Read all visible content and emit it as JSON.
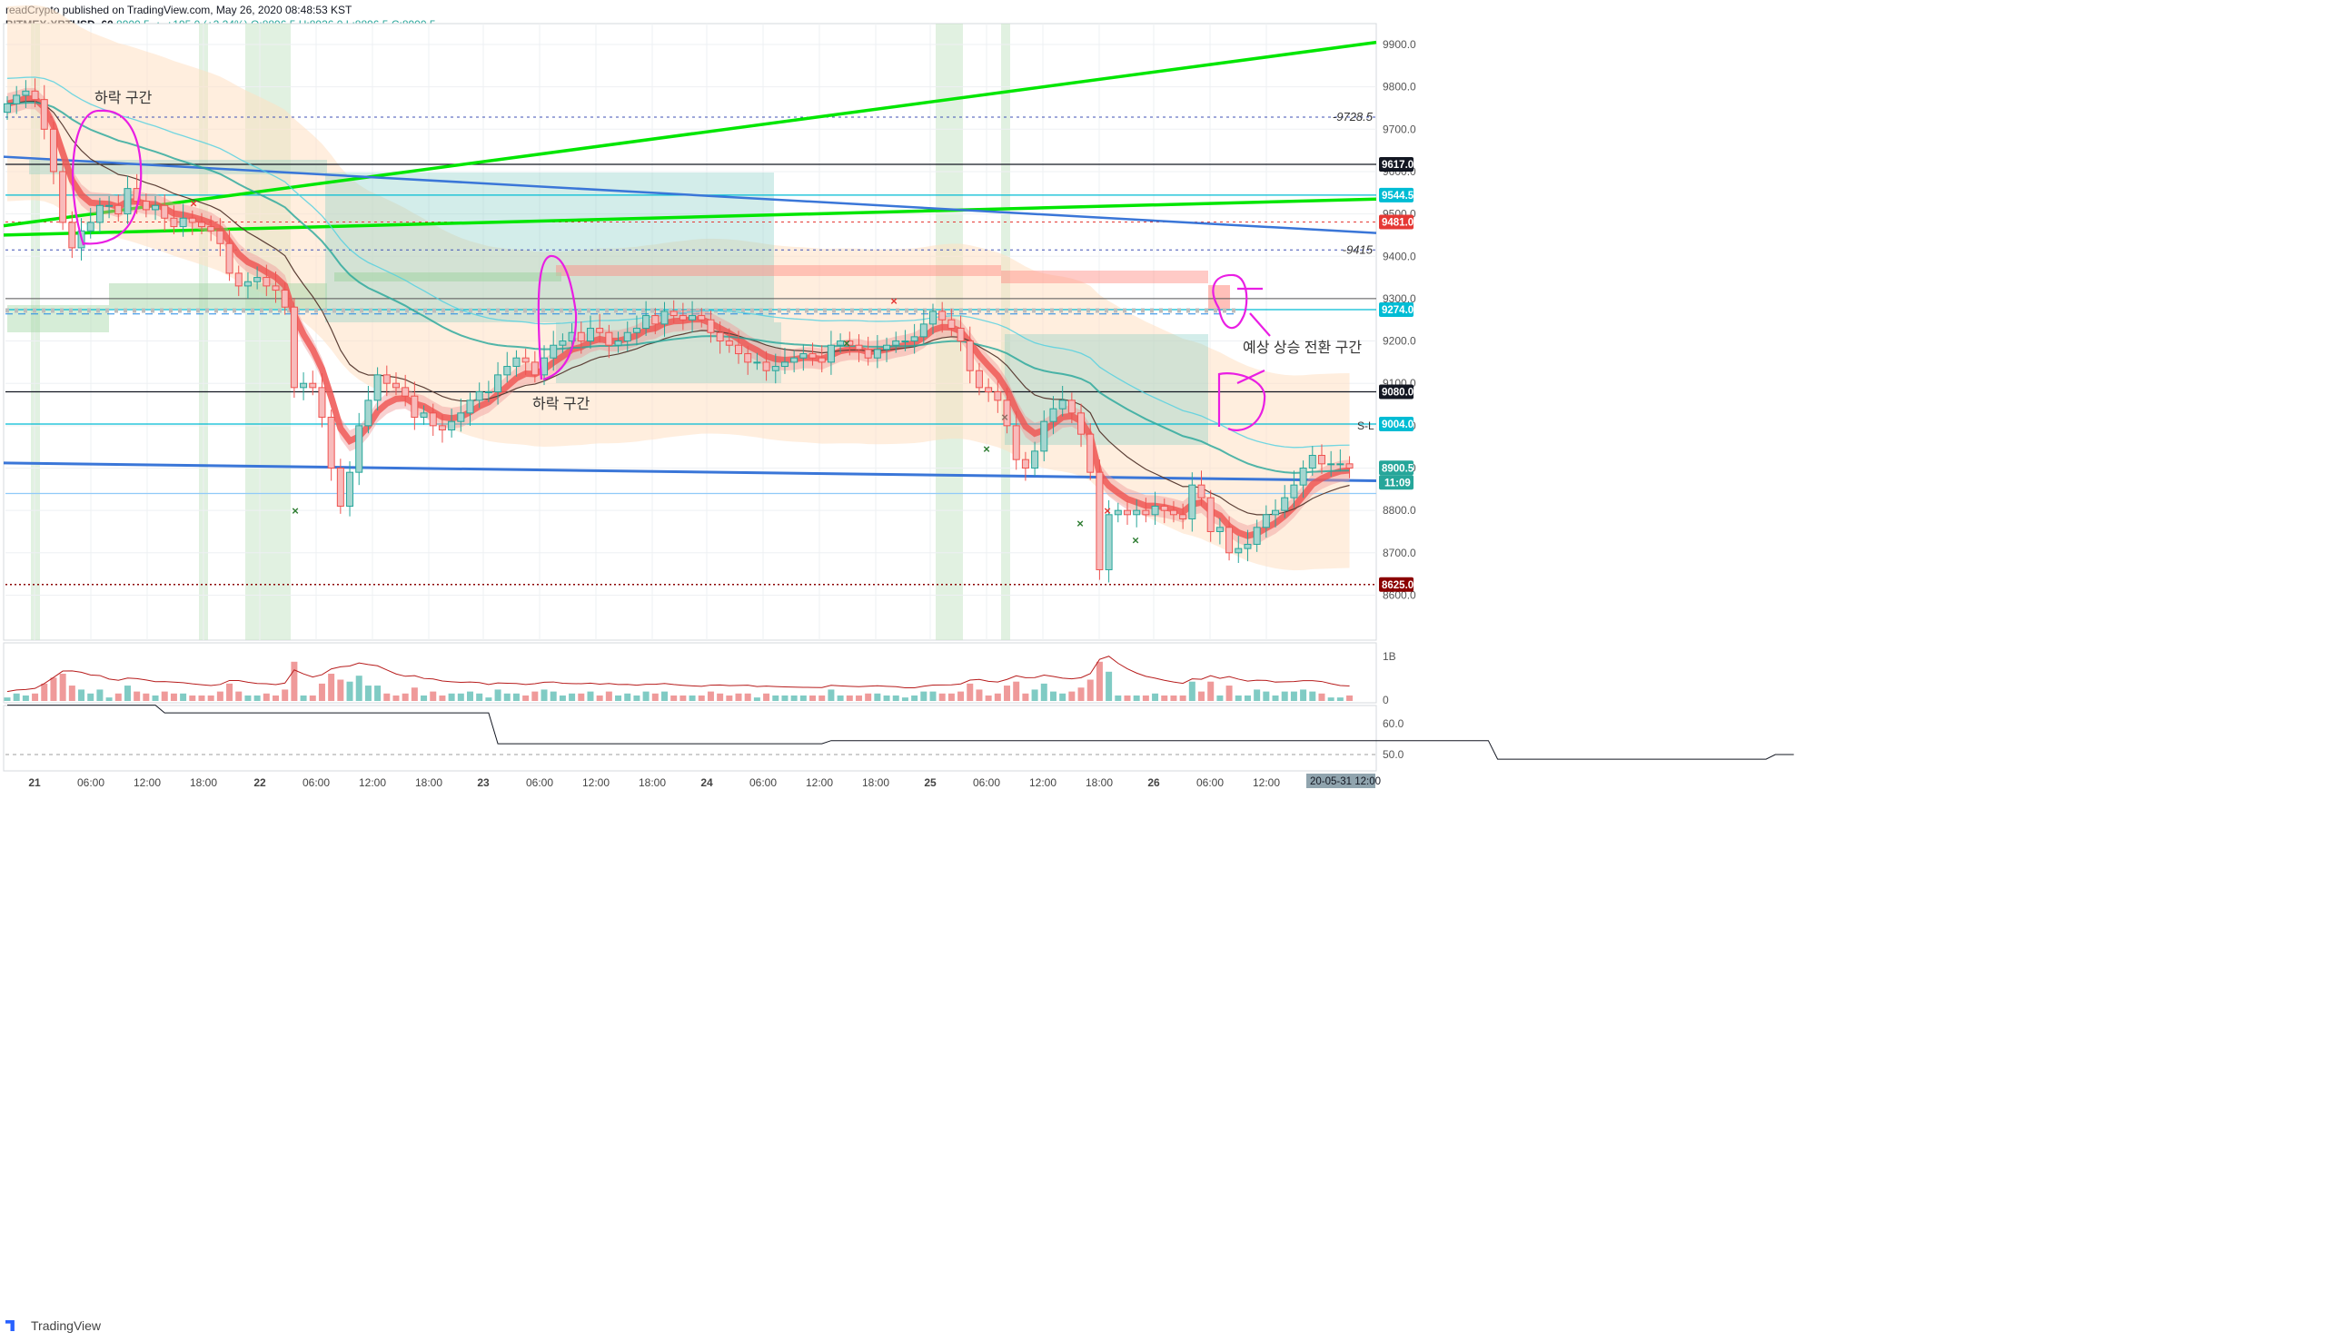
{
  "header": {
    "publisher_line": "readCrypto published on TradingView.com, May 26, 2020 08:48:53 KST",
    "symbol_label": "BITMEX:XBTUSD, 60",
    "last": "8900.5",
    "change": "▲ +195.0 (+2.24%)",
    "ohlc": "O:8896.5 H:8936.0 L:8896.5 C:8900.5"
  },
  "footer": {
    "brand": "TradingView"
  },
  "chart_data": {
    "type": "candlestick",
    "symbol": "BITMEX:XBTUSD",
    "interval": "60",
    "ylim": [
      8520,
      9950
    ],
    "y_ticks": [
      8600,
      8700,
      8800,
      8900,
      9000,
      9100,
      9200,
      9300,
      9400,
      9500,
      9600,
      9700,
      9800,
      9900
    ],
    "x_tick_labels": [
      "21",
      "06:00",
      "12:00",
      "18:00",
      "22",
      "06:00",
      "12:00",
      "18:00",
      "23",
      "06:00",
      "12:00",
      "18:00",
      "24",
      "06:00",
      "12:00",
      "18:00",
      "25",
      "06:00",
      "12:00",
      "18:00",
      "26",
      "06:00",
      "12:00"
    ],
    "date_badge": "20-05-31  12:00",
    "countdown": "11:09",
    "price_levels": [
      {
        "value": 9617.0,
        "label": "9617.0",
        "color": "#131722"
      },
      {
        "value": 9544.5,
        "label": "9544.5",
        "color": "#00bcd4"
      },
      {
        "value": 9481.0,
        "label": "9481.0",
        "color": "#e53935"
      },
      {
        "value": 9274.0,
        "label": "9274.0",
        "color": "#00bcd4"
      },
      {
        "value": 9080.0,
        "label": "9080.0",
        "color": "#131722"
      },
      {
        "value": 9004.0,
        "label": "9004.0",
        "color": "#00bcd4"
      },
      {
        "value": 8900.5,
        "label": "8900.5",
        "color": "#26a69a"
      },
      {
        "value": 8625.0,
        "label": "8625.0",
        "color": "#8b0000"
      }
    ],
    "dashed_levels": [
      {
        "value": 9728.5,
        "label": "9728.5"
      },
      {
        "value": 9415,
        "label": "9415"
      }
    ],
    "annotations": [
      "하락 구간",
      "하락 구간",
      "예상 상승 전환 구간",
      "S-L"
    ],
    "closes": [
      9760,
      9780,
      9790,
      9770,
      9700,
      9600,
      9480,
      9420,
      9460,
      9480,
      9520,
      9520,
      9500,
      9560,
      9530,
      9510,
      9520,
      9490,
      9470,
      9490,
      9480,
      9470,
      9460,
      9430,
      9360,
      9330,
      9340,
      9350,
      9330,
      9320,
      9280,
      9090,
      9100,
      9090,
      9020,
      8900,
      8810,
      8890,
      9000,
      9060,
      9120,
      9100,
      9090,
      9070,
      9020,
      9030,
      9000,
      8990,
      9010,
      9030,
      9060,
      9080,
      9080,
      9120,
      9140,
      9160,
      9150,
      9120,
      9160,
      9190,
      9200,
      9220,
      9200,
      9230,
      9220,
      9190,
      9200,
      9220,
      9230,
      9260,
      9240,
      9270,
      9260,
      9250,
      9260,
      9250,
      9220,
      9200,
      9190,
      9170,
      9150,
      9150,
      9130,
      9140,
      9150,
      9160,
      9170,
      9160,
      9150,
      9190,
      9200,
      9190,
      9180,
      9160,
      9180,
      9190,
      9200,
      9200,
      9210,
      9240,
      9270,
      9250,
      9230,
      9200,
      9130,
      9090,
      9080,
      9060,
      9000,
      8920,
      8900,
      8940,
      9010,
      9040,
      9060,
      9030,
      8980,
      8890,
      8660,
      8790,
      8800,
      8790,
      8800,
      8790,
      8810,
      8800,
      8790,
      8780,
      8860,
      8830,
      8750,
      8760,
      8700,
      8710,
      8720,
      8760,
      8790,
      8800,
      8830,
      8860,
      8900,
      8930,
      8910,
      8910,
      8910,
      8900
    ],
    "volume_pane": {
      "y_ticks": [
        "1B",
        "0"
      ]
    },
    "indicator_pane": {
      "y_ticks": [
        "60.0",
        "50.0"
      ],
      "steps": [
        [
          0,
          66
        ],
        [
          16,
          66
        ],
        [
          17,
          63.5
        ],
        [
          52,
          63.5
        ],
        [
          53,
          53.5
        ],
        [
          88,
          53.5
        ],
        [
          89,
          54.5
        ],
        [
          160,
          54.5
        ],
        [
          161,
          48.5
        ],
        [
          190,
          48.5
        ],
        [
          191,
          50
        ],
        [
          193,
          50
        ]
      ]
    }
  }
}
